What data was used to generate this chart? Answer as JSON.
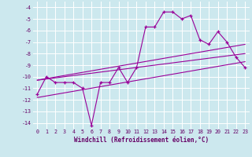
{
  "title": "",
  "xlabel": "Windchill (Refroidissement éolien,°C)",
  "ylabel": "",
  "xlim": [
    -0.5,
    23.5
  ],
  "ylim": [
    -14.5,
    -3.5
  ],
  "yticks": [
    -4,
    -5,
    -6,
    -7,
    -8,
    -9,
    -10,
    -11,
    -12,
    -13,
    -14
  ],
  "xticks": [
    0,
    1,
    2,
    3,
    4,
    5,
    6,
    7,
    8,
    9,
    10,
    11,
    12,
    13,
    14,
    15,
    16,
    17,
    18,
    19,
    20,
    21,
    22,
    23
  ],
  "bg_color": "#cce8ee",
  "line_color": "#990099",
  "grid_color": "#ffffff",
  "series1_x": [
    0,
    1,
    2,
    3,
    4,
    5,
    6,
    7,
    8,
    9,
    10,
    11,
    12,
    13,
    14,
    15,
    16,
    17,
    18,
    19,
    20,
    21,
    22,
    23
  ],
  "series1_y": [
    -11.5,
    -10.0,
    -10.5,
    -10.5,
    -10.5,
    -11.0,
    -14.2,
    -10.5,
    -10.5,
    -9.2,
    -10.5,
    -9.2,
    -5.7,
    -5.7,
    -4.4,
    -4.4,
    -5.0,
    -4.7,
    -6.8,
    -7.2,
    -6.1,
    -7.0,
    -8.3,
    -9.2
  ],
  "series2_x": [
    0,
    23
  ],
  "series2_y": [
    -10.3,
    -8.0
  ],
  "series3_x": [
    0,
    23
  ],
  "series3_y": [
    -11.8,
    -8.7
  ],
  "series4_x": [
    0,
    23
  ],
  "series4_y": [
    -10.3,
    -7.2
  ],
  "tick_color": "#660066",
  "xlabel_fontsize": 5.5,
  "tick_fontsize": 4.8
}
